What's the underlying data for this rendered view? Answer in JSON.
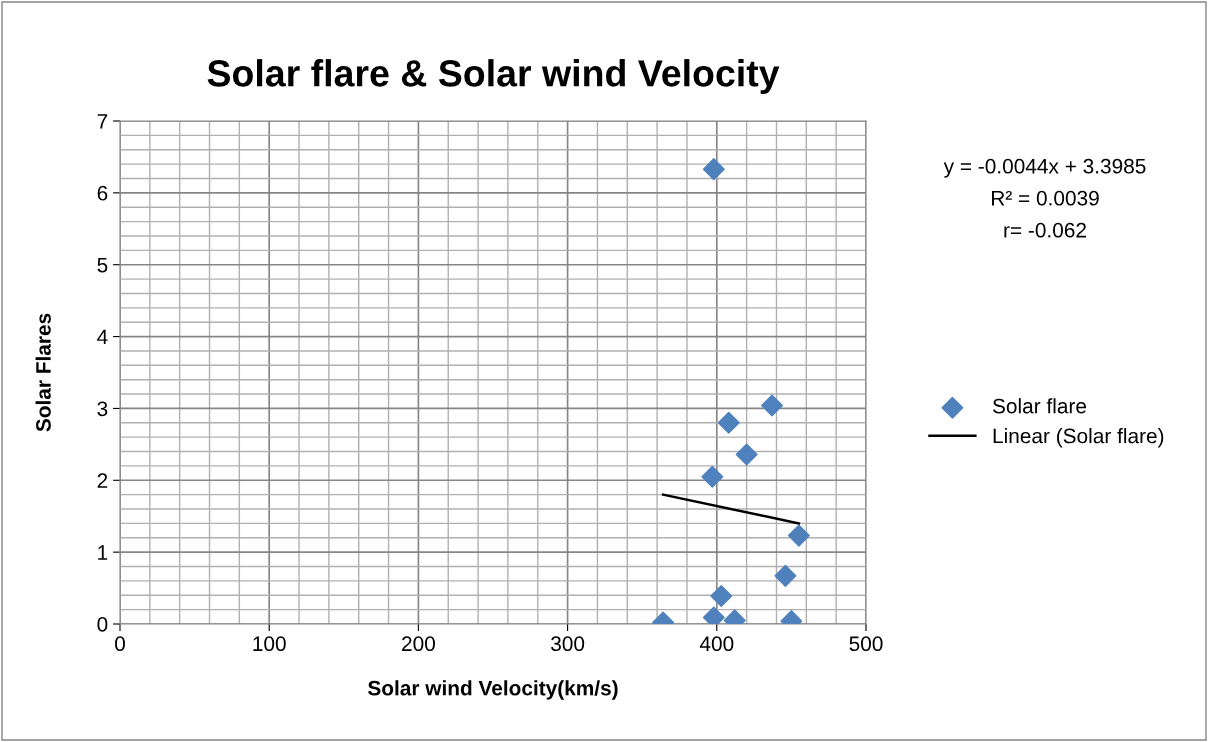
{
  "chart_data": {
    "type": "scatter",
    "title": "Solar flare & Solar wind Velocity",
    "xlabel": "Solar wind Velocity(km/s)",
    "ylabel": "Solar Flares",
    "xlim": [
      0,
      500
    ],
    "xticks": [
      0,
      100,
      200,
      300,
      400,
      500
    ],
    "ylim": [
      0,
      7
    ],
    "yticks": [
      0,
      1,
      2,
      3,
      4,
      5,
      6,
      7
    ],
    "grid": true,
    "legend": "right",
    "marker": "diamond",
    "series": [
      {
        "name": "Solar flare",
        "color": "#4f81bd",
        "x": [
          364,
          398,
          412,
          450,
          403,
          446,
          455,
          397,
          420,
          408,
          437,
          398
        ],
        "values": [
          0.02,
          0.09,
          0.05,
          0.04,
          0.39,
          0.67,
          1.23,
          2.05,
          2.36,
          2.8,
          3.04,
          6.33
        ]
      },
      {
        "name": "Linear (Solar flare)",
        "type": "line",
        "color": "#000000",
        "marker": "none",
        "x": [
          364,
          455
        ],
        "values": [
          1.8,
          1.4
        ]
      }
    ],
    "annotations": [
      "y = -0.0044x + 3.3985",
      "R² = 0.0039",
      "r= -0.062"
    ]
  }
}
